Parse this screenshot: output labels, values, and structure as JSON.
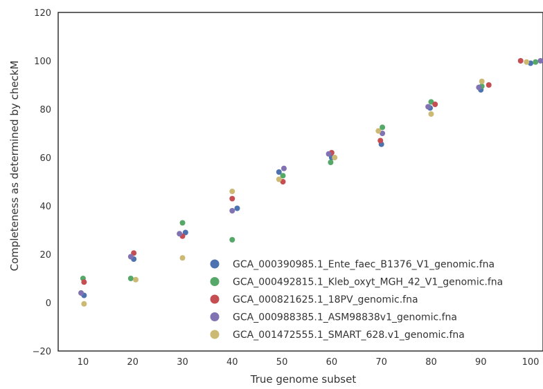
{
  "chart_data": {
    "type": "scatter",
    "title": "",
    "xlabel": "True genome subset",
    "ylabel": "Completeness as determined by checkM",
    "xlim": [
      5,
      102.5
    ],
    "ylim": [
      -20,
      120
    ],
    "x_ticks": [
      "10",
      "20",
      "30",
      "40",
      "50",
      "60",
      "70",
      "80",
      "90",
      "100"
    ],
    "y_ticks": [
      "−20",
      "0",
      "20",
      "40",
      "60",
      "80",
      "100",
      "120"
    ],
    "grid": false,
    "legend_position": "lower-right",
    "series": [
      {
        "name": "GCA_000390985.1_Ente_faec_B1376_V1_genomic.fna",
        "color": "#4c72b0",
        "points": [
          [
            10.2,
            3
          ],
          [
            20.2,
            18
          ],
          [
            30.6,
            29
          ],
          [
            41.0,
            39
          ],
          [
            49.4,
            54
          ],
          [
            60.0,
            60
          ],
          [
            70.0,
            65.5
          ],
          [
            79.8,
            80.5
          ],
          [
            90.0,
            88
          ],
          [
            100.0,
            99
          ]
        ]
      },
      {
        "name": "GCA_000492815.1_Kleb_oxyt_MGH_42_V1_genomic.fna",
        "color": "#55a868",
        "points": [
          [
            10.0,
            10
          ],
          [
            19.6,
            10
          ],
          [
            30.0,
            33
          ],
          [
            40.0,
            26
          ],
          [
            50.2,
            52.5
          ],
          [
            59.8,
            58
          ],
          [
            70.2,
            72.5
          ],
          [
            80.0,
            83
          ],
          [
            90.2,
            89.5
          ],
          [
            101.0,
            99.5
          ]
        ]
      },
      {
        "name": "GCA_000821625.1_18PV_genomic.fna",
        "color": "#c44e52",
        "points": [
          [
            10.2,
            8.5
          ],
          [
            20.2,
            20.5
          ],
          [
            30.0,
            27.5
          ],
          [
            40.0,
            43
          ],
          [
            50.2,
            50
          ],
          [
            60.0,
            62
          ],
          [
            69.8,
            67
          ],
          [
            80.8,
            82
          ],
          [
            91.6,
            90
          ],
          [
            98.0,
            100
          ]
        ]
      },
      {
        "name": "GCA_000988385.1_ASM98838v1_genomic.fna",
        "color": "#8172b2",
        "points": [
          [
            9.6,
            4
          ],
          [
            19.6,
            19
          ],
          [
            29.4,
            28.5
          ],
          [
            40.0,
            38
          ],
          [
            50.4,
            55.5
          ],
          [
            59.4,
            61.5
          ],
          [
            70.2,
            70
          ],
          [
            79.4,
            81
          ],
          [
            89.6,
            89
          ],
          [
            102.0,
            100
          ]
        ]
      },
      {
        "name": "GCA_001472555.1_SMART_628.v1_genomic.fna",
        "color": "#ccb974",
        "points": [
          [
            10.2,
            -0.5
          ],
          [
            20.6,
            9.5
          ],
          [
            30.0,
            18.5
          ],
          [
            40.0,
            46
          ],
          [
            49.4,
            51
          ],
          [
            60.6,
            60
          ],
          [
            69.4,
            71
          ],
          [
            80.0,
            78
          ],
          [
            90.2,
            91.5
          ],
          [
            99.2,
            99.5
          ]
        ]
      }
    ]
  }
}
